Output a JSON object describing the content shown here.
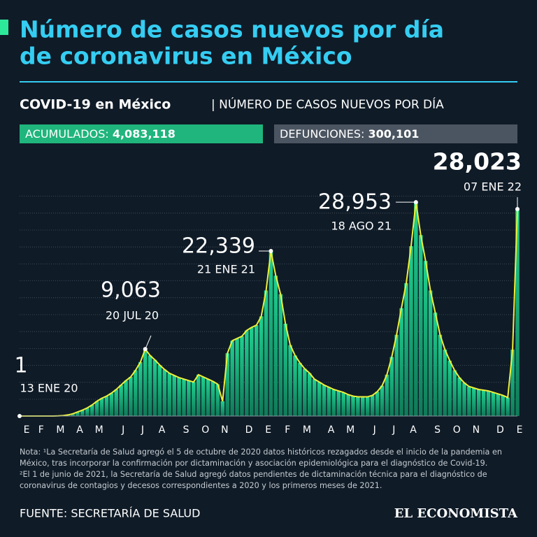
{
  "chart_data": {
    "type": "bar",
    "title": [
      "Número de casos nuevos por día",
      "de coronavirus en México"
    ],
    "subtitle": "COVID-19 en México",
    "subtitle_detail": "| NÚMERO DE CASOS NUEVOS POR DÍA",
    "stats": [
      {
        "label": "ACUMULADOS:",
        "value": 4083118,
        "value_label": "4,083,118",
        "color": "#1fb57c"
      },
      {
        "label": "DEFUNCIONES:",
        "value": 300101,
        "value_label": "300,101",
        "color": "#4b5561"
      }
    ],
    "categories": [
      "E",
      null,
      null,
      "F",
      null,
      null,
      null,
      "M",
      null,
      null,
      null,
      "A",
      null,
      null,
      null,
      "M",
      null,
      null,
      null,
      null,
      "J",
      null,
      null,
      null,
      "J",
      null,
      null,
      null,
      "A",
      null,
      null,
      null,
      null,
      "S",
      null,
      null,
      null,
      "O",
      null,
      null,
      null,
      "N",
      null,
      null,
      null,
      null,
      "D",
      null,
      null,
      null,
      "E",
      null,
      null,
      null,
      "F",
      null,
      null,
      null,
      "M",
      null,
      null,
      null,
      null,
      "A",
      null,
      null,
      null,
      "M",
      null,
      null,
      null,
      null,
      "J",
      null,
      null,
      null,
      "J",
      null,
      null,
      null,
      "A",
      null,
      null,
      null,
      null,
      "S",
      null,
      null,
      null,
      "O",
      null,
      null,
      null,
      "N",
      null,
      null,
      null,
      null,
      "D",
      null,
      null,
      null,
      "E",
      null
    ],
    "values": [
      1,
      0,
      0,
      0,
      0,
      0,
      0,
      2,
      20,
      60,
      150,
      300,
      550,
      800,
      1100,
      1500,
      2000,
      2400,
      2700,
      3100,
      3600,
      4200,
      4800,
      5300,
      6200,
      7300,
      9063,
      8200,
      7600,
      6900,
      6300,
      5800,
      5500,
      5200,
      5000,
      4800,
      4600,
      5600,
      5300,
      5000,
      4700,
      4300,
      2000,
      8500,
      10200,
      10500,
      10800,
      11600,
      12000,
      12300,
      13500,
      17000,
      22339,
      19000,
      16500,
      12500,
      9600,
      8200,
      7200,
      6400,
      5800,
      5000,
      4600,
      4200,
      3900,
      3600,
      3400,
      3200,
      2900,
      2700,
      2600,
      2600,
      2600,
      2800,
      3300,
      4100,
      5600,
      8000,
      11000,
      14600,
      18000,
      23000,
      28953,
      24500,
      21000,
      17000,
      14000,
      11000,
      9000,
      7500,
      6200,
      5200,
      4500,
      4000,
      3800,
      3600,
      3500,
      3400,
      3200,
      3000,
      2800,
      2500,
      9000,
      28023
    ],
    "color": "#1fd190",
    "line_color": "#eef03a",
    "ylim": [
      0,
      32000
    ],
    "grid": true,
    "annotations": [
      {
        "value": 1,
        "label": "1",
        "date": "13 ENE 20"
      },
      {
        "value": 9063,
        "label": "9,063",
        "date": "20 JUL 20"
      },
      {
        "value": 22339,
        "label": "22,339",
        "date": "21 ENE 21"
      },
      {
        "value": 28953,
        "label": "28,953",
        "date": "18 AGO 21"
      },
      {
        "value": 28023,
        "label": "28,023",
        "date": "07 ENE 22"
      }
    ],
    "notes": [
      "Nota: ¹La Secretaría de Salud agregó el 5 de octubre de 2020 datos históricos rezagados desde el inicio de la pandemia en",
      "México, tras incorporar la confirmación por dictaminación y asociación epidemiológica para el diagnóstico de Covid-19.",
      "²El 1 de junio de 2021, la Secretaría de Salud agregó datos pendientes de dictaminación técnica para el diagnóstico de",
      "coronavirus de contagios y decesos correspondientes a 2020 y los primeros meses de 2021."
    ],
    "source": "FUENTE: SECRETARÍA DE SALUD",
    "brand": "EL ECONOMISTA"
  }
}
